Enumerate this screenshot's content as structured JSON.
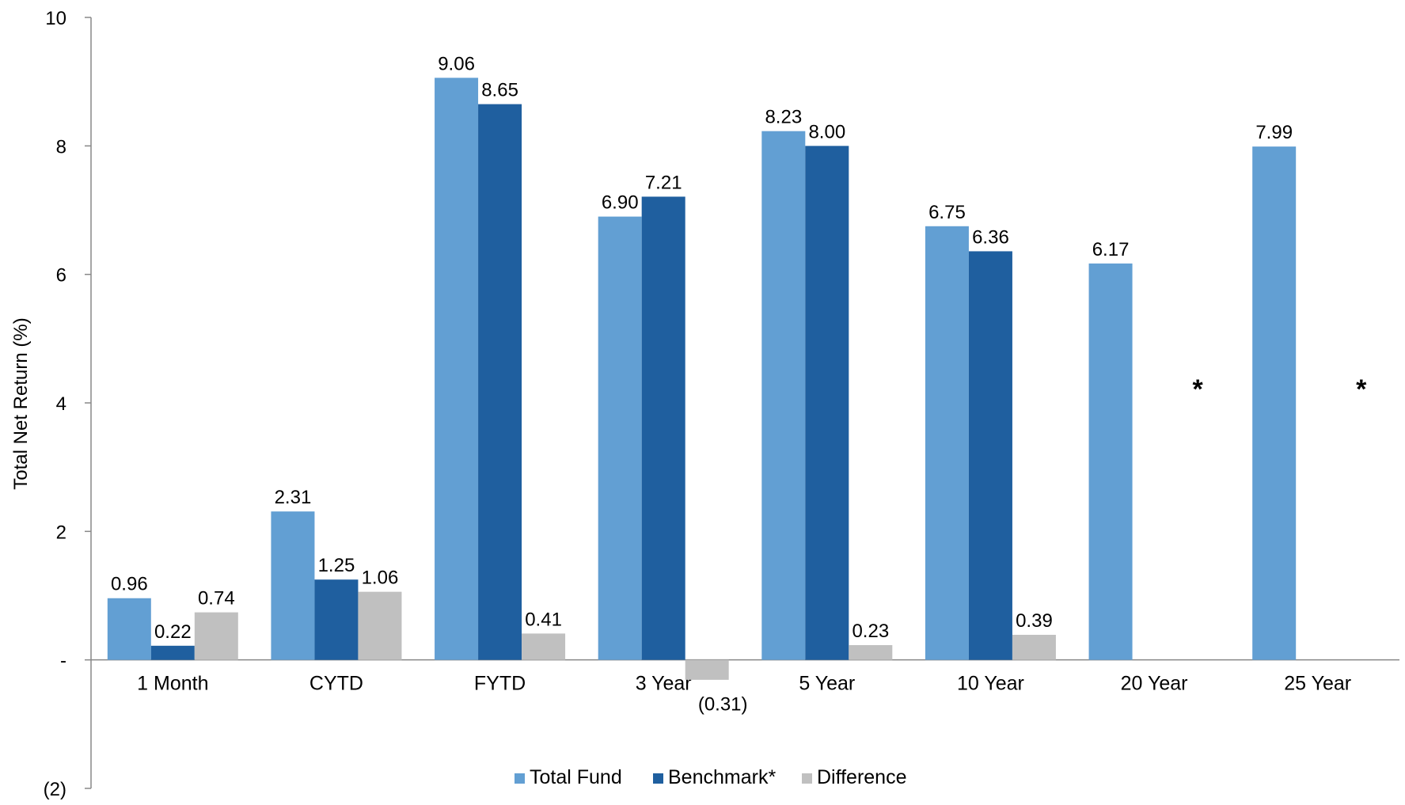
{
  "chart_data": {
    "type": "bar",
    "title": "",
    "xlabel": "",
    "ylabel": "Total Net Return (%)",
    "ylim": [
      -2,
      10
    ],
    "yticks": [
      {
        "value": 10,
        "label": "10"
      },
      {
        "value": 8,
        "label": "8"
      },
      {
        "value": 6,
        "label": "6"
      },
      {
        "value": 4,
        "label": "4"
      },
      {
        "value": 2,
        "label": "2"
      },
      {
        "value": 0,
        "label": "-"
      },
      {
        "value": -2,
        "label": "(2)"
      }
    ],
    "categories": [
      "1 Month",
      "CYTD",
      "FYTD",
      "3 Year",
      "5 Year",
      "10 Year",
      "20 Year",
      "25 Year"
    ],
    "series": [
      {
        "name": "Total Fund",
        "color": "#629fd3",
        "values": [
          0.96,
          2.31,
          9.06,
          6.9,
          8.23,
          6.75,
          6.17,
          7.99
        ],
        "labels": [
          "0.96",
          "2.31",
          "9.06",
          "6.90",
          "8.23",
          "6.75",
          "6.17",
          "7.99"
        ]
      },
      {
        "name": "Benchmark*",
        "color": "#1f5f9f",
        "values": [
          0.22,
          1.25,
          8.65,
          7.21,
          8.0,
          6.36,
          null,
          null
        ],
        "labels": [
          "0.22",
          "1.25",
          "8.65",
          "7.21",
          "8.00",
          "6.36",
          "*",
          "*"
        ]
      },
      {
        "name": "Difference",
        "color": "#c0c0c0",
        "values": [
          0.74,
          1.06,
          0.41,
          -0.31,
          0.23,
          0.39,
          null,
          null
        ],
        "labels": [
          "0.74",
          "1.06",
          "0.41",
          "(0.31)",
          "0.23",
          "0.39",
          "",
          ""
        ]
      }
    ],
    "grid": false,
    "legend": "bottom-center"
  }
}
